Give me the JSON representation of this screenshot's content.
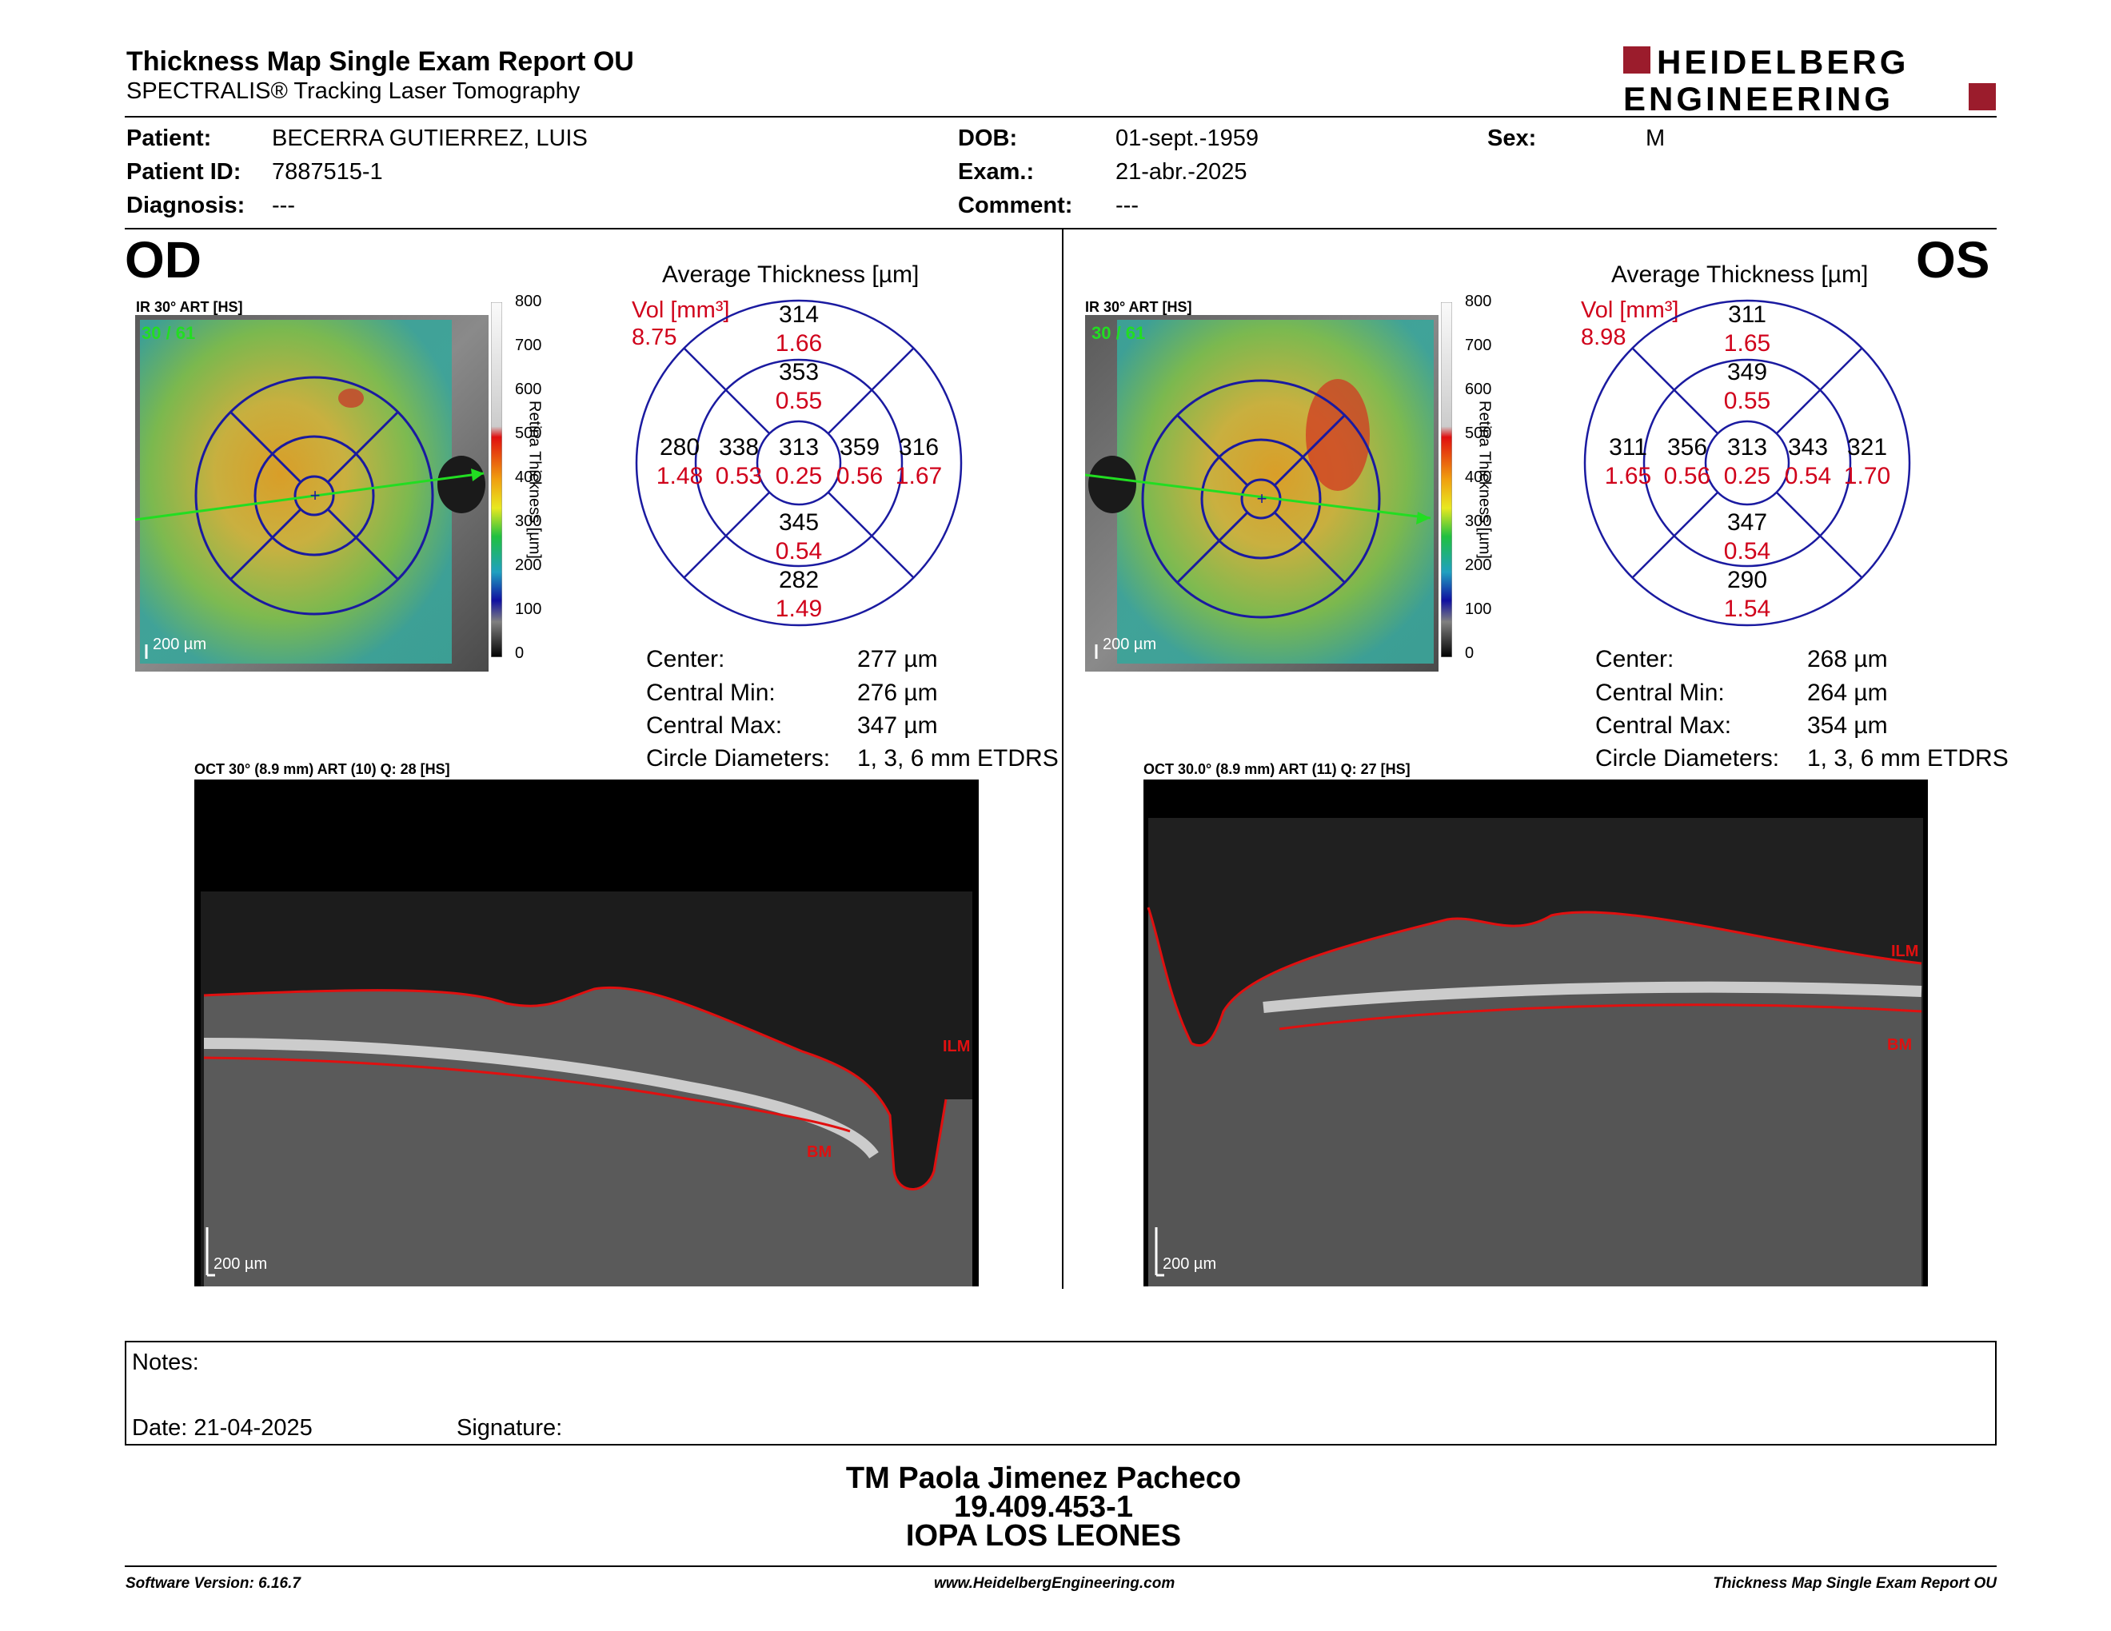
{
  "header": {
    "title": "Thickness Map Single Exam Report OU",
    "subtitle": "SPECTRALIS® Tracking Laser Tomography",
    "logo_line1": "HEIDELBERG",
    "logo_line2": "ENGINEERING",
    "logo_color": "#9b1c2c"
  },
  "patient": {
    "patient_label": "Patient:",
    "patient_value": "BECERRA GUTIERREZ, LUIS",
    "id_label": "Patient ID:",
    "id_value": "7887515-1",
    "diagnosis_label": "Diagnosis:",
    "diagnosis_value": "---",
    "dob_label": "DOB:",
    "dob_value": "01-sept.-1959",
    "exam_label": "Exam.:",
    "exam_value": "21-abr.-2025",
    "comment_label": "Comment:",
    "comment_value": "---",
    "sex_label": "Sex:",
    "sex_value": "M"
  },
  "od": {
    "eye": "OD",
    "ir_label": "IR 30° ART [HS]",
    "ir_count": "30 / 61",
    "scale": "200 µm",
    "colorbar_title": "Retina  Thickness [µm]",
    "colorbar_ticks": [
      "800",
      "700",
      "600",
      "500",
      "400",
      "300",
      "200",
      "100",
      "0"
    ],
    "etdrs_title": "Average Thickness [µm]",
    "vol_label": "Vol [mm³]",
    "vol_value": "8.75",
    "grid": {
      "center": [
        "313",
        "0.25"
      ],
      "inner_sup": [
        "353",
        "0.55"
      ],
      "inner_inf": [
        "345",
        "0.54"
      ],
      "inner_left": [
        "338",
        "0.53"
      ],
      "inner_right": [
        "359",
        "0.56"
      ],
      "outer_sup": [
        "314",
        "1.66"
      ],
      "outer_inf": [
        "282",
        "1.49"
      ],
      "outer_left": [
        "280",
        "1.48"
      ],
      "outer_right": [
        "316",
        "1.67"
      ]
    },
    "stats": [
      [
        "Center:",
        "277 µm"
      ],
      [
        "Central Min:",
        "276 µm"
      ],
      [
        "Central Max:",
        "347 µm"
      ],
      [
        "Circle Diameters:",
        "1, 3, 6 mm ETDRS"
      ]
    ],
    "oct_label": "OCT 30° (8.9 mm) ART (10) Q: 28 [HS]",
    "oct_scale": "200 µm",
    "ilm": "ILM",
    "bm": "BM"
  },
  "os": {
    "eye": "OS",
    "ir_label": "IR 30° ART [HS]",
    "ir_count": "30 / 61",
    "scale": "200 µm",
    "colorbar_title": "Retina  Thickness [µm]",
    "colorbar_ticks": [
      "800",
      "700",
      "600",
      "500",
      "400",
      "300",
      "200",
      "100",
      "0"
    ],
    "etdrs_title": "Average Thickness [µm]",
    "vol_label": "Vol [mm³]",
    "vol_value": "8.98",
    "grid": {
      "center": [
        "313",
        "0.25"
      ],
      "inner_sup": [
        "349",
        "0.55"
      ],
      "inner_inf": [
        "347",
        "0.54"
      ],
      "inner_left": [
        "356",
        "0.56"
      ],
      "inner_right": [
        "343",
        "0.54"
      ],
      "outer_sup": [
        "311",
        "1.65"
      ],
      "outer_inf": [
        "290",
        "1.54"
      ],
      "outer_left": [
        "311",
        "1.65"
      ],
      "outer_right": [
        "321",
        "1.70"
      ]
    },
    "stats": [
      [
        "Center:",
        "268 µm"
      ],
      [
        "Central Min:",
        "264 µm"
      ],
      [
        "Central Max:",
        "354 µm"
      ],
      [
        "Circle Diameters:",
        "1, 3, 6 mm ETDRS"
      ]
    ],
    "oct_label": "OCT 30.0° (8.9 mm) ART (11) Q: 27 [HS]",
    "oct_scale": "200 µm",
    "ilm": "ILM",
    "bm": "BM"
  },
  "notes": {
    "notes_label": "Notes:",
    "date_label": "Date: 21-04-2025",
    "signature_label": "Signature:"
  },
  "signer": {
    "name": "TM Paola Jimenez Pacheco",
    "rut": "19.409.453-1",
    "place": "IOPA LOS LEONES"
  },
  "footer": {
    "software": "Software Version: 6.16.7",
    "url": "www.HeidelbergEngineering.com",
    "report": "Thickness Map Single Exam Report OU"
  }
}
